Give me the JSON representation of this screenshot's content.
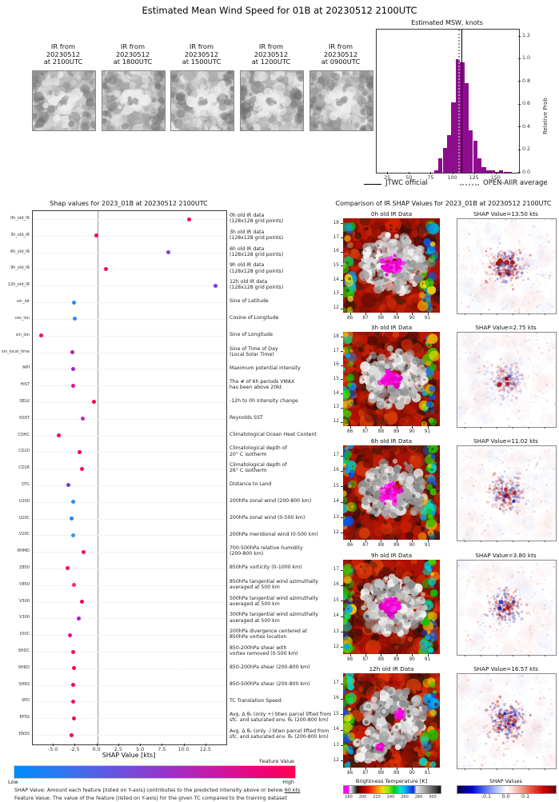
{
  "title": "Estimated Mean Wind Speed for 01B at 20230512 2100UTC",
  "ir_thumbnails": [
    {
      "line1": "IR from",
      "line2": "20230512",
      "line3": "at 2100UTC"
    },
    {
      "line1": "IR from",
      "line2": "20230512",
      "line3": "at 1800UTC"
    },
    {
      "line1": "IR from",
      "line2": "20230512",
      "line3": "at 1500UTC"
    },
    {
      "line1": "IR from",
      "line2": "20230512",
      "line3": "at 1200UTC"
    },
    {
      "line1": "IR from",
      "line2": "20230512",
      "line3": "at 0900UTC"
    }
  ],
  "chart_data": [
    {
      "type": "bar",
      "title": "Estimated MSW, knots",
      "xlabel": "",
      "ylabel": "Relative Prob",
      "bar_color": "#8e0d8e",
      "xlim": [
        12,
        176
      ],
      "ylim": [
        0,
        1.26
      ],
      "bin_width": 5,
      "categories": [
        80.5,
        85.5,
        90.5,
        95.5,
        100.5,
        105.5,
        110.5,
        115.5,
        120.5,
        125.5,
        130.5,
        135.5,
        140.5,
        145.5,
        150.5,
        155.5,
        160.5,
        165.5
      ],
      "values": [
        0.02,
        0.13,
        0.22,
        0.33,
        0.62,
        1.0,
        0.97,
        0.79,
        0.37,
        0.28,
        0.13,
        0.05,
        0.02,
        0.02,
        0.01,
        0.02,
        0.01,
        0.01
      ],
      "xticks": [
        25,
        50,
        75,
        100,
        125,
        150
      ],
      "yticks": [
        "0.0",
        "0.2",
        "0.4",
        "0.6",
        "0.8",
        "1.0",
        "1.2"
      ],
      "vlines": [
        {
          "label": "JTWC official",
          "x": 110,
          "style": "solid",
          "color": "#000000"
        },
        {
          "label": "OPEN-AIIR average",
          "x": 106,
          "style": "dotted",
          "color": "#9a9a9a"
        }
      ],
      "legend": [
        {
          "label": "JTWC official",
          "style": "solid"
        },
        {
          "label": "OPEN-AIIR average",
          "style": "dotted"
        }
      ]
    },
    {
      "type": "scatter",
      "title": "Shap values for 2023_01B at 20230512 2100UTC",
      "xlabel": "SHAP Value [kts]",
      "xlim": [
        -7.4,
        14.8
      ],
      "xticks": [
        {
          "v": -5,
          "label": "-5.0"
        },
        {
          "v": -2.5,
          "label": "-2.5"
        },
        {
          "v": 0,
          "label": "0.0"
        },
        {
          "v": 2.5,
          "label": "2.5"
        },
        {
          "v": 5,
          "label": "5.0"
        },
        {
          "v": 7.5,
          "label": "7.5"
        },
        {
          "v": 10,
          "label": "10.0"
        },
        {
          "v": 12.5,
          "label": "12.5"
        }
      ],
      "points": [
        {
          "code": "0h_old_IR",
          "value": 10.5,
          "color": "#fb0766",
          "desc": "0h old IR data\n(128x128 grid points)"
        },
        {
          "code": "3h_old_IR",
          "value": -0.1,
          "color": "#ef0355",
          "desc": "3h old IR data\n(128x128 grid points)"
        },
        {
          "code": "6h_old_IR",
          "value": 8.1,
          "color": "#7d3fe0",
          "desc": "6h old IR data\n(128x128 grid points)"
        },
        {
          "code": "9h_old_IR",
          "value": 1.0,
          "color": "#f2075e",
          "desc": "9h old IR data\n(128x128 grid points)"
        },
        {
          "code": "12h_old_IR",
          "value": 13.6,
          "color": "#7a36e8",
          "desc": "12h old IR data\n(128x128 grid points)"
        },
        {
          "code": "sin_lat",
          "value": -2.7,
          "color": "#1e90ff",
          "desc": "Sine of Latitude"
        },
        {
          "code": "cos_lon",
          "value": -2.6,
          "color": "#1e90ff",
          "desc": "Cosine of Longitude"
        },
        {
          "code": "sin_lon",
          "value": -6.4,
          "color": "#fb0766",
          "desc": "Sine of Longitude"
        },
        {
          "code": "sin_local_time",
          "value": -2.9,
          "color": "#c715ae",
          "desc": "Sine of Time of Day\n(Local Solar Time)"
        },
        {
          "code": "MPI",
          "value": -2.8,
          "color": "#a21fd0",
          "desc": "Maximum potential intensity"
        },
        {
          "code": "HIST",
          "value": -2.75,
          "color": "#d4189e",
          "desc": "The # of 6h periods VMAX\nhas been above 20kt"
        },
        {
          "code": "DELV",
          "value": -0.4,
          "color": "#f50457",
          "desc": "-12h to 0h Intensity change"
        },
        {
          "code": "RSST",
          "value": -1.7,
          "color": "#c02ab8",
          "desc": "Reynolds SST"
        },
        {
          "code": "COHC",
          "value": -4.4,
          "color": "#f9085f",
          "desc": "Climatological Ocean Heat Content"
        },
        {
          "code": "CD20",
          "value": -2.0,
          "color": "#f50266",
          "desc": "Climatological depth of\n20° C isotherm"
        },
        {
          "code": "CD26",
          "value": -1.8,
          "color": "#f9085f",
          "desc": "Climatological depth of\n26° C isotherm"
        },
        {
          "code": "DTL",
          "value": -3.3,
          "color": "#6e3ad2",
          "desc": "Distance to Land"
        },
        {
          "code": "U200",
          "value": -2.8,
          "color": "#1e90ff",
          "desc": "200hPa zonal wind (200-800 km)"
        },
        {
          "code": "U20C",
          "value": -3.0,
          "color": "#1589fb",
          "desc": "200hPa zonal wind (0-500 km)"
        },
        {
          "code": "V20C",
          "value": -2.75,
          "color": "#2b97ff",
          "desc": "200hPa meridional wind (0-500 km)"
        },
        {
          "code": "RHMD",
          "value": -1.6,
          "color": "#ef0b62",
          "desc": "700-500hPa relative humidity\n(200-800 km)"
        },
        {
          "code": "Z850",
          "value": -3.4,
          "color": "#f9085f",
          "desc": "850hPa vorticity (0-1000 km)"
        },
        {
          "code": "V850",
          "value": -2.7,
          "color": "#fb2375",
          "desc": "850hPa tangential wind azimuthally\naveraged at 500 km"
        },
        {
          "code": "V500",
          "value": -1.75,
          "color": "#f50457",
          "desc": "500hPa tangential wind azimuthally\naveraged at 500 km"
        },
        {
          "code": "V300",
          "value": -2.1,
          "color": "#b31cc4",
          "desc": "300hPa tangential wind azimuthally\naveraged at 500 km"
        },
        {
          "code": "DIVC",
          "value": -3.1,
          "color": "#e80f93",
          "desc": "200hPa divergence centered at\n850hPa vortex location"
        },
        {
          "code": "SHDC",
          "value": -2.8,
          "color": "#f9085f",
          "desc": "850-200hPa shear with\nvortex removed (0-500 km)"
        },
        {
          "code": "SHRD",
          "value": -2.7,
          "color": "#f50457",
          "desc": "850-200hPa shear (200-800 km)"
        },
        {
          "code": "SHRS",
          "value": -2.75,
          "color": "#f50457",
          "desc": "850-500hPa shear (200-800 km)"
        },
        {
          "code": "SPD",
          "value": -2.8,
          "color": "#f9085f",
          "desc": "TC Translation Speed"
        },
        {
          "code": "EPSS",
          "value": -2.7,
          "color": "#f50457",
          "desc": "Avg. Δ θₑ (only +) btwn parcel lifted from\nsfc. and saturated env. θₑ (200-800 km)"
        },
        {
          "code": "ENSS",
          "value": -3.0,
          "color": "#f50266",
          "desc": "Avg. Δ θₑ (only -) btwn parcel lifted from\nsfc. and saturated env. θₑ (200-800 km)"
        }
      ]
    }
  ],
  "shap_panel": {
    "colorbar": {
      "label": "Feature Value",
      "low": "Low",
      "high": "High",
      "left_color": "#008bfb",
      "right_color": "#ff0051"
    },
    "footnote1_prefix": "SHAP Value: Amount each feature [listed on Y-axis] contributes to the predicted intensity above or below ",
    "footnote1_underline": "60 kts",
    "footnote2": "Feature Value: The value of the feature [listed on Y-axis] for the given TC compared to the training dataset"
  },
  "comparison": {
    "title": "Comparison of IR SHAP Values for 2023_01B at 20230512 2100UTC",
    "rows": [
      {
        "ir_title": "0h old IR Data",
        "shap_title": "SHAP Value=13.50 kts",
        "shap_value_kts": 13.5,
        "yticks": [
          18,
          17,
          16,
          15,
          14,
          13,
          12
        ],
        "lat_range": [
          11.7,
          18.35
        ],
        "xticks": [
          86,
          87,
          88,
          89,
          90,
          91
        ],
        "lon_range": [
          85.55,
          91.8
        ]
      },
      {
        "ir_title": "3h old IR Data",
        "shap_title": "SHAP Value=2.75 kts",
        "shap_value_kts": 2.75,
        "yticks": [
          18,
          17,
          16,
          15,
          14,
          13,
          12
        ],
        "lat_range": [
          11.7,
          18.35
        ],
        "xticks": [
          86,
          87,
          88,
          89,
          90,
          91
        ],
        "lon_range": [
          85.55,
          91.8
        ]
      },
      {
        "ir_title": "6h old IR Data",
        "shap_title": "SHAP Value=11.02 kts",
        "shap_value_kts": 11.02,
        "yticks": [
          17,
          16,
          15,
          14,
          13,
          12
        ],
        "lat_range": [
          11.55,
          17.65
        ],
        "xticks": [
          86,
          87,
          88,
          89,
          90,
          91
        ],
        "lon_range": [
          85.55,
          91.8
        ]
      },
      {
        "ir_title": "9h old IR Data",
        "shap_title": "SHAP Value=3.80 kts",
        "shap_value_kts": 3.8,
        "yticks": [
          17,
          16,
          15,
          14,
          13,
          12
        ],
        "lat_range": [
          11.55,
          17.65
        ],
        "xticks": [
          86,
          87,
          88,
          89,
          90,
          91
        ],
        "lon_range": [
          85.55,
          91.8
        ]
      },
      {
        "ir_title": "12h old IR Data",
        "shap_title": "SHAP Value=16.57 kts",
        "shap_value_kts": 16.57,
        "yticks": [
          17,
          16,
          15,
          14,
          13,
          12
        ],
        "lat_range": [
          11.55,
          17.65
        ],
        "xticks": [
          86,
          87,
          88,
          89,
          90,
          91
        ],
        "lon_range": [
          85.55,
          91.8
        ]
      }
    ],
    "bt_colorbar": {
      "title": "Brightness Temperature [K]",
      "ticks": [
        180,
        200,
        220,
        240,
        260,
        280,
        300
      ]
    },
    "shap_colorbar": {
      "title": "SHAP Values",
      "ticks": [
        {
          "v": -0.1,
          "label": "-0.1"
        },
        {
          "v": 0.0,
          "label": "0.0"
        },
        {
          "v": 0.1,
          "label": "0.1"
        }
      ]
    }
  }
}
